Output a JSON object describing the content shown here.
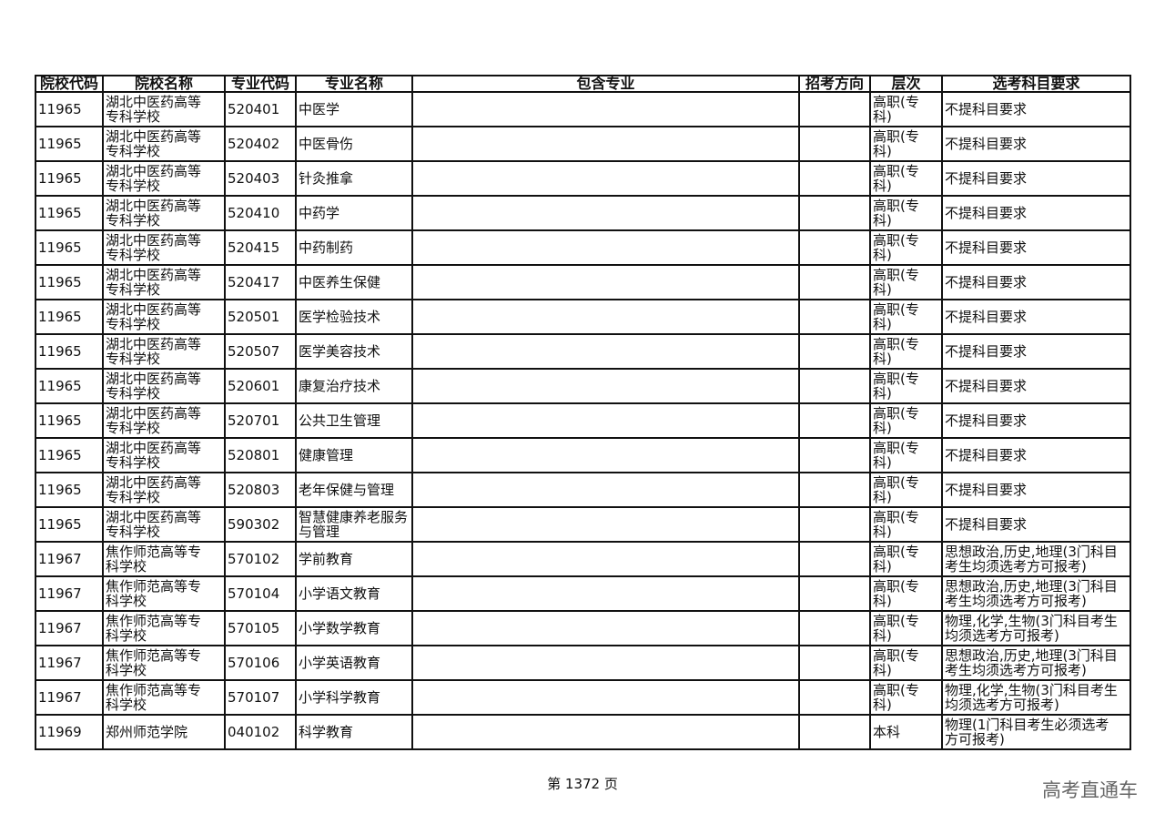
{
  "headers": [
    "院校代码",
    "院校名称",
    "专业代码",
    "专业名称",
    "包含专业",
    "招考方向",
    "层次",
    "选考科目要求"
  ],
  "rows": [
    [
      "11965",
      "湖北中医药高等专科学校",
      "520401",
      "中医学",
      "",
      "",
      "高职(专科)",
      "不提科目要求"
    ],
    [
      "11965",
      "湖北中医药高等专科学校",
      "520402",
      "中医骨伤",
      "",
      "",
      "高职(专科)",
      "不提科目要求"
    ],
    [
      "11965",
      "湖北中医药高等专科学校",
      "520403",
      "针灸推拿",
      "",
      "",
      "高职(专科)",
      "不提科目要求"
    ],
    [
      "11965",
      "湖北中医药高等专科学校",
      "520410",
      "中药学",
      "",
      "",
      "高职(专科)",
      "不提科目要求"
    ],
    [
      "11965",
      "湖北中医药高等专科学校",
      "520415",
      "中药制药",
      "",
      "",
      "高职(专科)",
      "不提科目要求"
    ],
    [
      "11965",
      "湖北中医药高等专科学校",
      "520417",
      "中医养生保健",
      "",
      "",
      "高职(专科)",
      "不提科目要求"
    ],
    [
      "11965",
      "湖北中医药高等专科学校",
      "520501",
      "医学检验技术",
      "",
      "",
      "高职(专科)",
      "不提科目要求"
    ],
    [
      "11965",
      "湖北中医药高等专科学校",
      "520507",
      "医学美容技术",
      "",
      "",
      "高职(专科)",
      "不提科目要求"
    ],
    [
      "11965",
      "湖北中医药高等专科学校",
      "520601",
      "康复治疗技术",
      "",
      "",
      "高职(专科)",
      "不提科目要求"
    ],
    [
      "11965",
      "湖北中医药高等专科学校",
      "520701",
      "公共卫生管理",
      "",
      "",
      "高职(专科)",
      "不提科目要求"
    ],
    [
      "11965",
      "湖北中医药高等专科学校",
      "520801",
      "健康管理",
      "",
      "",
      "高职(专科)",
      "不提科目要求"
    ],
    [
      "11965",
      "湖北中医药高等专科学校",
      "520803",
      "老年保健与管理",
      "",
      "",
      "高职(专科)",
      "不提科目要求"
    ],
    [
      "11965",
      "湖北中医药高等专科学校",
      "590302",
      "智慧健康养老服务与管理",
      "",
      "",
      "高职(专科)",
      "不提科目要求"
    ],
    [
      "11967",
      "焦作师范高等专科学校",
      "570102",
      "学前教育",
      "",
      "",
      "高职(专科)",
      "思想政治,历史,地理(3门科目考生均须选考方可报考)"
    ],
    [
      "11967",
      "焦作师范高等专科学校",
      "570104",
      "小学语文教育",
      "",
      "",
      "高职(专科)",
      "思想政治,历史,地理(3门科目考生均须选考方可报考)"
    ],
    [
      "11967",
      "焦作师范高等专科学校",
      "570105",
      "小学数学教育",
      "",
      "",
      "高职(专科)",
      "物理,化学,生物(3门科目考生均须选考方可报考)"
    ],
    [
      "11967",
      "焦作师范高等专科学校",
      "570106",
      "小学英语教育",
      "",
      "",
      "高职(专科)",
      "思想政治,历史,地理(3门科目考生均须选考方可报考)"
    ],
    [
      "11967",
      "焦作师范高等专科学校",
      "570107",
      "小学科学教育",
      "",
      "",
      "高职(专科)",
      "物理,化学,生物(3门科目考生均须选考方可报考)"
    ],
    [
      "11969",
      "郑州师范学院",
      "040102",
      "科学教育",
      "",
      "",
      "本科",
      "物理(1门科目考生必须选考方可报考)"
    ]
  ],
  "footer": {
    "page": "第 1372 页"
  },
  "watermark": "高考直通车"
}
